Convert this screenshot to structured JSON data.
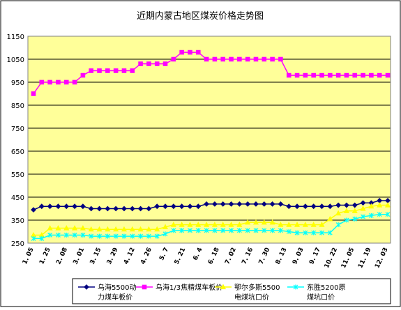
{
  "chart_data": {
    "type": "line",
    "title": "近期内蒙古地区煤炭价格走势图",
    "xlabel": "",
    "ylabel": "",
    "ylim": [
      250,
      1150
    ],
    "yticks": [
      250,
      350,
      450,
      550,
      650,
      750,
      850,
      950,
      1050,
      1150
    ],
    "grid": true,
    "legend_position": "bottom",
    "x_tick_labels": [
      "1. 05",
      "1. 25",
      "2. 08",
      "3. 01",
      "3. 15",
      "3. 29",
      "4. 12",
      "4. 26",
      "5. 7",
      "5. 21",
      "6. 4",
      "6. 18",
      "7. 02",
      "7. 16",
      "7. 30",
      "8. 13",
      "9. 03",
      "9. 17",
      "10. 22",
      "11. 05",
      "11. 19",
      "12. 03"
    ],
    "series": [
      {
        "name": "乌海5500动力煤车板价",
        "name_lines": [
          "乌海5500动",
          "力煤车板价"
        ],
        "color": "#000080",
        "marker": "diamond",
        "values": [
          395,
          410,
          410,
          410,
          410,
          410,
          410,
          400,
          400,
          400,
          400,
          400,
          400,
          400,
          400,
          410,
          410,
          410,
          410,
          410,
          410,
          420,
          420,
          420,
          420,
          420,
          420,
          420,
          420,
          420,
          420,
          410,
          410,
          410,
          410,
          410,
          410,
          415,
          415,
          415,
          425,
          425,
          435,
          435
        ]
      },
      {
        "name": "乌海1/3焦精煤车板价",
        "name_lines": [
          "乌海1/3焦精煤车板价"
        ],
        "color": "#ff00ff",
        "marker": "square",
        "values": [
          900,
          950,
          950,
          950,
          950,
          950,
          980,
          1000,
          1000,
          1000,
          1000,
          1000,
          1000,
          1030,
          1030,
          1030,
          1030,
          1050,
          1080,
          1080,
          1080,
          1050,
          1050,
          1050,
          1050,
          1050,
          1050,
          1050,
          1050,
          1050,
          1050,
          980,
          980,
          980,
          980,
          980,
          980,
          980,
          980,
          980,
          980,
          980,
          980,
          980
        ]
      },
      {
        "name": "鄂尔多斯5500电煤坑口价",
        "name_lines": [
          "鄂尔多斯5500",
          "电煤坑口价"
        ],
        "color": "#ffff00",
        "marker": "triangle",
        "values": [
          285,
          285,
          315,
          315,
          315,
          315,
          315,
          310,
          310,
          310,
          310,
          310,
          310,
          310,
          310,
          310,
          320,
          330,
          330,
          330,
          330,
          330,
          330,
          330,
          330,
          330,
          340,
          340,
          340,
          340,
          330,
          330,
          330,
          330,
          330,
          330,
          355,
          380,
          390,
          390,
          400,
          410,
          415,
          415
        ]
      },
      {
        "name": "东胜5200原煤坑口价",
        "name_lines": [
          "东胜5200原",
          "煤坑口价"
        ],
        "color": "#00ffff",
        "marker": "cross",
        "values": [
          270,
          270,
          285,
          285,
          285,
          285,
          285,
          280,
          280,
          280,
          280,
          280,
          280,
          280,
          280,
          280,
          290,
          305,
          305,
          305,
          305,
          305,
          305,
          305,
          305,
          305,
          305,
          305,
          305,
          305,
          305,
          300,
          295,
          295,
          295,
          295,
          295,
          330,
          350,
          355,
          365,
          370,
          375,
          375
        ]
      }
    ]
  }
}
